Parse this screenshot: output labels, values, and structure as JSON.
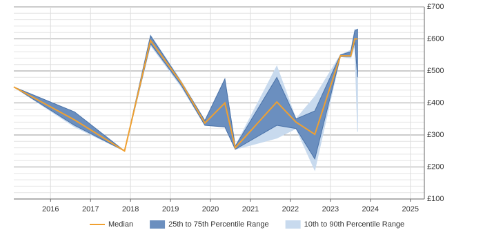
{
  "chart_data": {
    "type": "line",
    "x": [
      2015.08,
      2016.6,
      2017.85,
      2018.5,
      2019.27,
      2019.86,
      2020.36,
      2020.62,
      2021.66,
      2022.14,
      2022.61,
      2023.25,
      2023.51,
      2023.61,
      2023.68
    ],
    "series": [
      {
        "name": "Median",
        "color": "#f0a030",
        "values": [
          450,
          347,
          250,
          595,
          463,
          337,
          400,
          260,
          403,
          340,
          302,
          547,
          547,
          600,
          600
        ]
      }
    ],
    "bands": [
      {
        "name": "25th to 75th Percentile Range",
        "color": "#6b8fbf",
        "stroke": "#4a72a8",
        "low": [
          450,
          330,
          250,
          585,
          455,
          330,
          325,
          255,
          330,
          320,
          225,
          545,
          545,
          590,
          480
        ],
        "high": [
          450,
          372,
          250,
          610,
          465,
          345,
          475,
          265,
          480,
          350,
          375,
          550,
          560,
          625,
          630
        ]
      },
      {
        "name": "10th to 90th Percentile Range",
        "color": "#c8daee",
        "stroke": "#c8daee",
        "low": [
          450,
          325,
          250,
          580,
          450,
          330,
          325,
          255,
          290,
          320,
          190,
          545,
          540,
          580,
          310
        ],
        "high": [
          450,
          372,
          250,
          612,
          468,
          345,
          475,
          265,
          515,
          350,
          420,
          550,
          565,
          630,
          630
        ]
      }
    ],
    "xlim": [
      2015.08,
      2025.35
    ],
    "xticks": [
      2016,
      2017,
      2018,
      2019,
      2020,
      2021,
      2022,
      2023,
      2024,
      2025
    ],
    "ylim": [
      100,
      700
    ],
    "yticks": [
      {
        "value": 100,
        "label": "£100"
      },
      {
        "value": 200,
        "label": "£200"
      },
      {
        "value": 300,
        "label": "£300"
      },
      {
        "value": 400,
        "label": "£400"
      },
      {
        "value": 500,
        "label": "£500"
      },
      {
        "value": 600,
        "label": "£600"
      },
      {
        "value": 700,
        "label": "£700"
      }
    ],
    "grid": true
  }
}
